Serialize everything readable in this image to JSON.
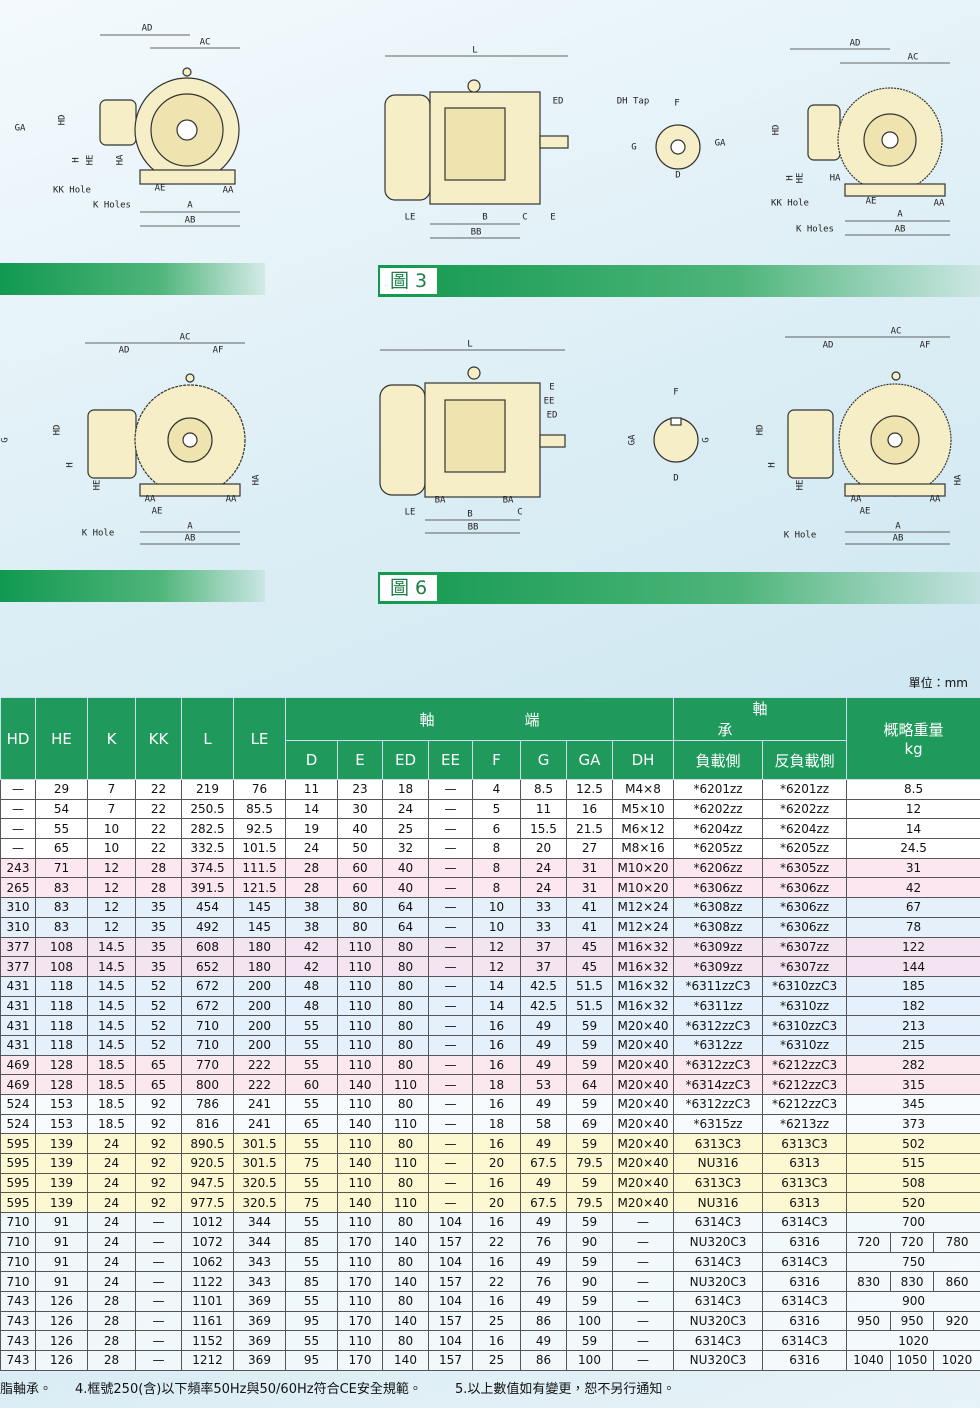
{
  "side_labels": [
    "GA",
    "G"
  ],
  "figures": [
    {
      "labels": [
        "AD",
        "AC",
        "HD",
        "H",
        "HE",
        "HA",
        "KK Hole",
        "AE",
        "AA",
        "K Holes",
        "A",
        "AB"
      ]
    },
    {
      "labels": [
        "L",
        "ED",
        "LE",
        "B",
        "C",
        "E",
        "BB"
      ]
    },
    {
      "labels": [
        "DH Tap",
        "F",
        "G",
        "GA",
        "D"
      ]
    },
    {
      "labels": [
        "AD",
        "AC",
        "HD",
        "H",
        "HE",
        "HA",
        "KK Hole",
        "AE",
        "AA",
        "K Holes",
        "A",
        "AB"
      ]
    },
    {
      "labels": [
        "AC",
        "AD",
        "AF",
        "HD",
        "H",
        "HE",
        "HA",
        "AA",
        "AA",
        "AE",
        "K Hole",
        "A",
        "AB"
      ]
    },
    {
      "labels": [
        "L",
        "E",
        "EE",
        "ED",
        "BA",
        "BA",
        "LE",
        "B",
        "C",
        "BB"
      ]
    },
    {
      "labels": [
        "F",
        "GA",
        "G",
        "D"
      ]
    },
    {
      "labels": [
        "AC",
        "AD",
        "AF",
        "HD",
        "H",
        "HE",
        "HA",
        "AA",
        "AA",
        "AE",
        "K Hole",
        "A",
        "AB"
      ]
    }
  ],
  "captions": [
    "圖 3",
    "圖 6"
  ],
  "table": {
    "unit": "單位：mm",
    "columns_left": [
      "HD",
      "HE",
      "K",
      "KK",
      "L",
      "LE"
    ],
    "shaft_group": "軸端",
    "shaft_columns": [
      "D",
      "E",
      "ED",
      "EE",
      "F",
      "G",
      "GA",
      "DH"
    ],
    "bearing_group": "軸承",
    "bearing_columns": [
      "負載側",
      "反負載側"
    ],
    "weight_header": "概略重量",
    "weight_unit": "kg",
    "rows": [
      [
        "—",
        "29",
        "7",
        "22",
        "219",
        "76",
        "11",
        "23",
        "18",
        "—",
        "4",
        "8.5",
        "12.5",
        "M4×8",
        "*6201zz",
        "*6201zz",
        [
          "8.5"
        ]
      ],
      [
        "—",
        "54",
        "7",
        "22",
        "250.5",
        "85.5",
        "14",
        "30",
        "24",
        "—",
        "5",
        "11",
        "16",
        "M5×10",
        "*6202zz",
        "*6202zz",
        [
          "12"
        ]
      ],
      [
        "—",
        "55",
        "10",
        "22",
        "282.5",
        "92.5",
        "19",
        "40",
        "25",
        "—",
        "6",
        "15.5",
        "21.5",
        "M6×12",
        "*6204zz",
        "*6204zz",
        [
          "14"
        ]
      ],
      [
        "—",
        "65",
        "10",
        "22",
        "332.5",
        "101.5",
        "24",
        "50",
        "32",
        "—",
        "8",
        "20",
        "27",
        "M8×16",
        "*6205zz",
        "*6205zz",
        [
          "24.5"
        ]
      ],
      [
        "243",
        "71",
        "12",
        "28",
        "374.5",
        "111.5",
        "28",
        "60",
        "40",
        "—",
        "8",
        "24",
        "31",
        "M10×20",
        "*6206zz",
        "*6305zz",
        [
          "31"
        ]
      ],
      [
        "265",
        "83",
        "12",
        "28",
        "391.5",
        "121.5",
        "28",
        "60",
        "40",
        "—",
        "8",
        "24",
        "31",
        "M10×20",
        "*6306zz",
        "*6306zz",
        [
          "42"
        ]
      ],
      [
        "310",
        "83",
        "12",
        "35",
        "454",
        "145",
        "38",
        "80",
        "64",
        "—",
        "10",
        "33",
        "41",
        "M12×24",
        "*6308zz",
        "*6306zz",
        [
          "67"
        ]
      ],
      [
        "310",
        "83",
        "12",
        "35",
        "492",
        "145",
        "38",
        "80",
        "64",
        "—",
        "10",
        "33",
        "41",
        "M12×24",
        "*6308zz",
        "*6306zz",
        [
          "78"
        ]
      ],
      [
        "377",
        "108",
        "14.5",
        "35",
        "608",
        "180",
        "42",
        "110",
        "80",
        "—",
        "12",
        "37",
        "45",
        "M16×32",
        "*6309zz",
        "*6307zz",
        [
          "122"
        ]
      ],
      [
        "377",
        "108",
        "14.5",
        "35",
        "652",
        "180",
        "42",
        "110",
        "80",
        "—",
        "12",
        "37",
        "45",
        "M16×32",
        "*6309zz",
        "*6307zz",
        [
          "144"
        ]
      ],
      [
        "431",
        "118",
        "14.5",
        "52",
        "672",
        "200",
        "48",
        "110",
        "80",
        "—",
        "14",
        "42.5",
        "51.5",
        "M16×32",
        "*6311zzC3",
        "*6310zzC3",
        [
          "185"
        ]
      ],
      [
        "431",
        "118",
        "14.5",
        "52",
        "672",
        "200",
        "48",
        "110",
        "80",
        "—",
        "14",
        "42.5",
        "51.5",
        "M16×32",
        "*6311zz",
        "*6310zz",
        [
          "182"
        ]
      ],
      [
        "431",
        "118",
        "14.5",
        "52",
        "710",
        "200",
        "55",
        "110",
        "80",
        "—",
        "16",
        "49",
        "59",
        "M20×40",
        "*6312zzC3",
        "*6310zzC3",
        [
          "213"
        ]
      ],
      [
        "431",
        "118",
        "14.5",
        "52",
        "710",
        "200",
        "55",
        "110",
        "80",
        "—",
        "16",
        "49",
        "59",
        "M20×40",
        "*6312zz",
        "*6310zz",
        [
          "215"
        ]
      ],
      [
        "469",
        "128",
        "18.5",
        "65",
        "770",
        "222",
        "55",
        "110",
        "80",
        "—",
        "16",
        "49",
        "59",
        "M20×40",
        "*6312zzC3",
        "*6212zzC3",
        [
          "282"
        ]
      ],
      [
        "469",
        "128",
        "18.5",
        "65",
        "800",
        "222",
        "60",
        "140",
        "110",
        "—",
        "18",
        "53",
        "64",
        "M20×40",
        "*6314zzC3",
        "*6212zzC3",
        [
          "315"
        ]
      ],
      [
        "524",
        "153",
        "18.5",
        "92",
        "786",
        "241",
        "55",
        "110",
        "80",
        "—",
        "16",
        "49",
        "59",
        "M20×40",
        "*6312zzC3",
        "*6212zzC3",
        [
          "345"
        ]
      ],
      [
        "524",
        "153",
        "18.5",
        "92",
        "816",
        "241",
        "65",
        "140",
        "110",
        "—",
        "18",
        "58",
        "69",
        "M20×40",
        "*6315zz",
        "*6213zz",
        [
          "373"
        ]
      ],
      [
        "595",
        "139",
        "24",
        "92",
        "890.5",
        "301.5",
        "55",
        "110",
        "80",
        "—",
        "16",
        "49",
        "59",
        "M20×40",
        "6313C3",
        "6313C3",
        [
          "502"
        ]
      ],
      [
        "595",
        "139",
        "24",
        "92",
        "920.5",
        "301.5",
        "75",
        "140",
        "110",
        "—",
        "20",
        "67.5",
        "79.5",
        "M20×40",
        "NU316",
        "6313",
        [
          "515"
        ]
      ],
      [
        "595",
        "139",
        "24",
        "92",
        "947.5",
        "320.5",
        "55",
        "110",
        "80",
        "—",
        "16",
        "49",
        "59",
        "M20×40",
        "6313C3",
        "6313C3",
        [
          "508"
        ]
      ],
      [
        "595",
        "139",
        "24",
        "92",
        "977.5",
        "320.5",
        "75",
        "140",
        "110",
        "—",
        "20",
        "67.5",
        "79.5",
        "M20×40",
        "NU316",
        "6313",
        [
          "520"
        ]
      ],
      [
        "710",
        "91",
        "24",
        "—",
        "1012",
        "344",
        "55",
        "110",
        "80",
        "104",
        "16",
        "49",
        "59",
        "—",
        "6314C3",
        "6314C3",
        [
          "700"
        ]
      ],
      [
        "710",
        "91",
        "24",
        "—",
        "1072",
        "344",
        "85",
        "170",
        "140",
        "157",
        "22",
        "76",
        "90",
        "—",
        "NU320C3",
        "6316",
        [
          "720",
          "720",
          "780"
        ]
      ],
      [
        "710",
        "91",
        "24",
        "—",
        "1062",
        "343",
        "55",
        "110",
        "80",
        "104",
        "16",
        "49",
        "59",
        "—",
        "6314C3",
        "6314C3",
        [
          "750"
        ]
      ],
      [
        "710",
        "91",
        "24",
        "—",
        "1122",
        "343",
        "85",
        "170",
        "140",
        "157",
        "22",
        "76",
        "90",
        "—",
        "NU320C3",
        "6316",
        [
          "830",
          "830",
          "860"
        ]
      ],
      [
        "743",
        "126",
        "28",
        "—",
        "1101",
        "369",
        "55",
        "110",
        "80",
        "104",
        "16",
        "49",
        "59",
        "—",
        "6314C3",
        "6314C3",
        [
          "900"
        ]
      ],
      [
        "743",
        "126",
        "28",
        "—",
        "1161",
        "369",
        "95",
        "170",
        "140",
        "157",
        "25",
        "86",
        "100",
        "—",
        "NU320C3",
        "6316",
        [
          "950",
          "950",
          "920"
        ]
      ],
      [
        "743",
        "126",
        "28",
        "—",
        "1152",
        "369",
        "55",
        "110",
        "80",
        "104",
        "16",
        "49",
        "59",
        "—",
        "6314C3",
        "6314C3",
        [
          "1020"
        ]
      ],
      [
        "743",
        "126",
        "28",
        "—",
        "1212",
        "369",
        "95",
        "170",
        "140",
        "157",
        "25",
        "86",
        "100",
        "—",
        "NU320C3",
        "6316",
        [
          "1040",
          "1050",
          "1020"
        ]
      ]
    ]
  },
  "notes": [
    "脂軸承。",
    "4.框號250(含)以下頻率50Hz與50/60Hz符合CE安全規範。",
    "5.以上數值如有變更，恕不另行通知。"
  ]
}
